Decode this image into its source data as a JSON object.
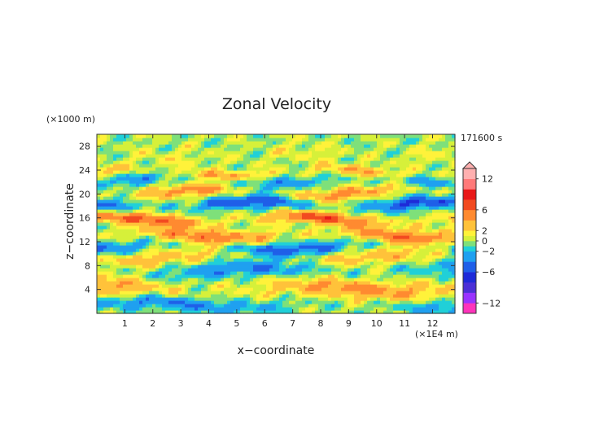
{
  "chart_data": {
    "type": "heatmap",
    "title": "Zonal Velocity",
    "xlabel": "x−coordinate",
    "ylabel": "z−coordinate",
    "x_unit": "(×1E4 m)",
    "y_unit": "(×1000 m)",
    "time_label": "171600 s",
    "xlim": [
      0,
      12.8
    ],
    "ylim": [
      0,
      30
    ],
    "x_ticks": [
      1,
      2,
      3,
      4,
      5,
      6,
      7,
      8,
      9,
      10,
      11,
      12
    ],
    "y_ticks": [
      4,
      8,
      12,
      16,
      20,
      24,
      28
    ],
    "colorbar": {
      "range": [
        -14,
        14
      ],
      "tick_values": [
        12,
        6,
        2,
        0,
        -2,
        -6,
        -12
      ],
      "tick_labels": [
        "12",
        "6",
        "2",
        "0",
        "−2",
        "−6",
        "−12"
      ],
      "levels": [
        -14,
        -12,
        -10,
        -8,
        -6,
        -4,
        -2,
        -1,
        0,
        1,
        2,
        4,
        6,
        8,
        10,
        12,
        14
      ],
      "colors": [
        "#ff33bb",
        "#9933ff",
        "#4b2fd6",
        "#1e2ad8",
        "#1f5fe8",
        "#1fa0f0",
        "#20d0d8",
        "#7ee07a",
        "#d6f03a",
        "#fff23a",
        "#ffc23a",
        "#ff8a30",
        "#f24a20",
        "#e81818",
        "#ff7a7a",
        "#ffb0b0"
      ],
      "extend": "max"
    },
    "bands": [
      {
        "z": 1.5,
        "amp": -4,
        "width": 1.2
      },
      {
        "z": 4.2,
        "amp": 5,
        "width": 1.6
      },
      {
        "z": 7.2,
        "amp": -4,
        "width": 1.3
      },
      {
        "z": 9.5,
        "amp": 3,
        "width": 1.2
      },
      {
        "z": 11.2,
        "amp": -5,
        "width": 1.1
      },
      {
        "z": 13.2,
        "amp": 6,
        "width": 1.2
      },
      {
        "z": 15.8,
        "amp": 7,
        "width": 1.0
      },
      {
        "z": 18.3,
        "amp": -6,
        "width": 1.1
      },
      {
        "z": 20.3,
        "amp": 5,
        "width": 1.0
      },
      {
        "z": 22.3,
        "amp": -3,
        "width": 1.0
      },
      {
        "z": 23.7,
        "amp": 4,
        "width": 0.8
      },
      {
        "z": 26.5,
        "amp": 1,
        "width": 1.5
      }
    ]
  }
}
